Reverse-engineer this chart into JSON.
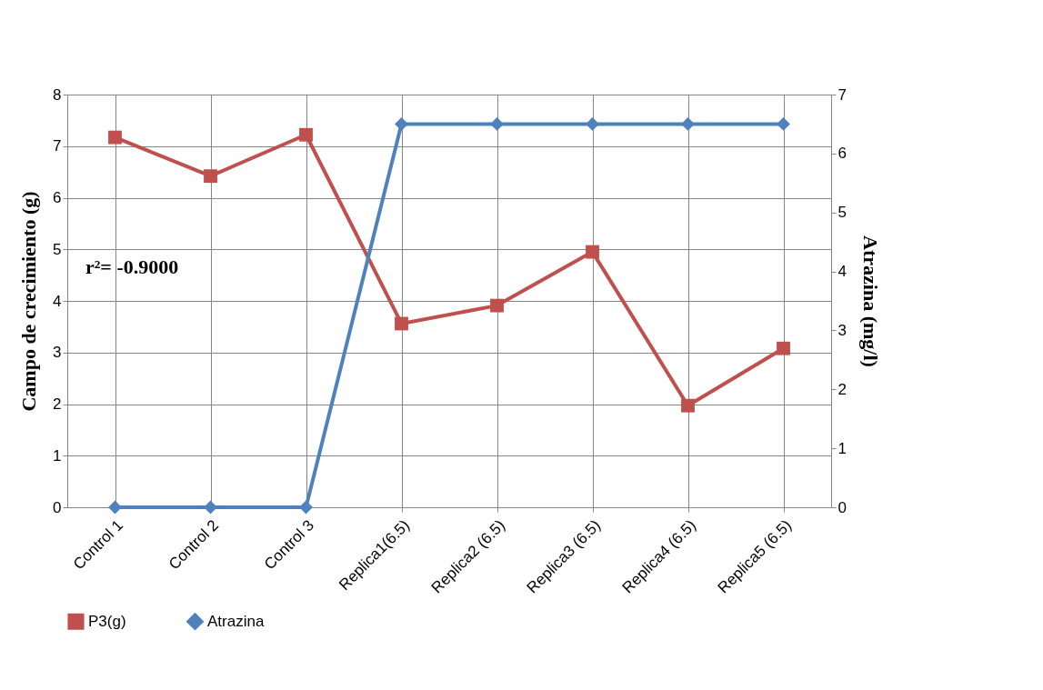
{
  "chart_data": {
    "type": "line",
    "ylabel": "Campo de crecimiento (g)",
    "y2label": "Atrazina (mg/l)",
    "categories": [
      "Control 1",
      "Control 2",
      "Control 3",
      "Replica1(6.5)",
      "Replica2 (6.5)",
      "Replica3 (6.5)",
      "Replica4 (6.5)",
      "Replica5 (6.5)"
    ],
    "series": [
      {
        "name": "P3(g)",
        "color": "#c0504d",
        "marker": "square",
        "values": [
          7.17,
          6.42,
          7.22,
          3.56,
          3.91,
          4.95,
          1.97,
          3.08
        ]
      },
      {
        "name": "Atrazina",
        "color": "#4f81bd",
        "marker": "diamond",
        "axis": "y2",
        "values": [
          0,
          0,
          0,
          6.5,
          6.5,
          6.5,
          6.5,
          6.5
        ]
      }
    ],
    "ylim": [
      0,
      8
    ],
    "yticks": [
      0,
      1,
      2,
      3,
      4,
      5,
      6,
      7,
      8
    ],
    "y2lim": [
      0,
      7
    ],
    "y2ticks": [
      0,
      1,
      2,
      3,
      4,
      5,
      6,
      7
    ],
    "annotations": [
      "r²= -0.9000"
    ],
    "grid": true,
    "legend": "bottom",
    "line_style": "solid"
  }
}
